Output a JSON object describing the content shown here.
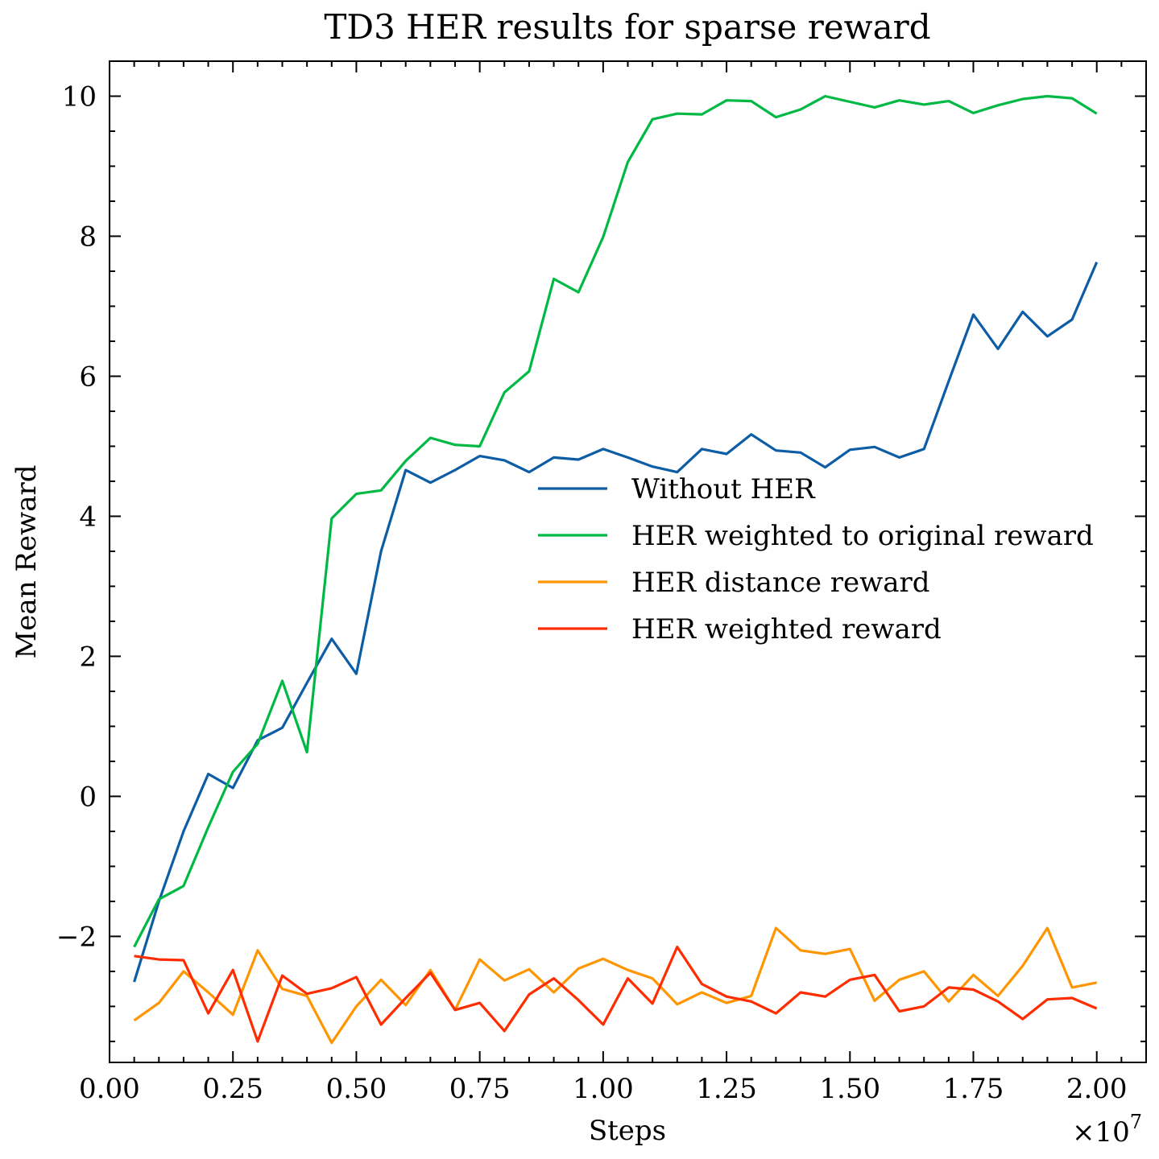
{
  "chart_data": {
    "type": "line",
    "title": "TD3 HER results for sparse reward",
    "xlabel": "Steps",
    "ylabel": "Mean Reward",
    "x_multiplier_label": "×10",
    "x_multiplier_exponent": "7",
    "xlim": [
      0,
      21000000
    ],
    "ylim": [
      -3.8,
      10.5
    ],
    "grid": false,
    "legend_position": "center-right",
    "x_ticks": [
      0,
      2500000,
      5000000,
      7500000,
      10000000,
      12500000,
      15000000,
      17500000,
      20000000
    ],
    "x_tick_labels": [
      "0.00",
      "0.25",
      "0.50",
      "0.75",
      "1.00",
      "1.25",
      "1.50",
      "1.75",
      "2.00"
    ],
    "y_ticks": [
      -2,
      0,
      2,
      4,
      6,
      8,
      10
    ],
    "y_tick_labels": [
      "−2",
      "0",
      "2",
      "4",
      "6",
      "8",
      "10"
    ],
    "x": [
      500000,
      1000000,
      1500000,
      2000000,
      2500000,
      3000000,
      3500000,
      4000000,
      4500000,
      5000000,
      5500000,
      6000000,
      6500000,
      7000000,
      7500000,
      8000000,
      8500000,
      9000000,
      9500000,
      10000000,
      10500000,
      11000000,
      11500000,
      12000000,
      12500000,
      13000000,
      13500000,
      14000000,
      14500000,
      15000000,
      15500000,
      16000000,
      16500000,
      17000000,
      17500000,
      18000000,
      18500000,
      19000000,
      19500000,
      20000000
    ],
    "series": [
      {
        "name": "Without HER",
        "color": "#0C5DA5",
        "values": [
          -2.65,
          -1.5,
          -0.5,
          0.32,
          0.12,
          0.8,
          0.98,
          1.62,
          2.25,
          1.75,
          3.5,
          4.66,
          4.48,
          4.66,
          4.86,
          4.8,
          4.63,
          4.84,
          4.81,
          4.96,
          4.84,
          4.71,
          4.63,
          4.96,
          4.89,
          5.17,
          4.94,
          4.91,
          4.7,
          4.95,
          4.99,
          4.84,
          4.96,
          5.93,
          6.88,
          6.39,
          6.92,
          6.57,
          6.81,
          7.63
        ]
      },
      {
        "name": "HER weighted to original reward",
        "color": "#00B945",
        "values": [
          -2.15,
          -1.47,
          -1.28,
          -0.44,
          0.35,
          0.75,
          1.65,
          0.63,
          3.97,
          4.32,
          4.37,
          4.79,
          5.12,
          5.02,
          5.0,
          5.77,
          6.07,
          7.39,
          7.2,
          7.99,
          9.06,
          9.67,
          9.75,
          9.74,
          9.94,
          9.93,
          9.7,
          9.81,
          10.0,
          9.92,
          9.84,
          9.94,
          9.88,
          9.93,
          9.76,
          9.87,
          9.96,
          10.0,
          9.97,
          9.75
        ]
      },
      {
        "name": "HER distance reward",
        "color": "#FF9500",
        "values": [
          -3.2,
          -2.95,
          -2.5,
          -2.8,
          -3.12,
          -2.2,
          -2.75,
          -2.85,
          -3.52,
          -3.0,
          -2.62,
          -2.98,
          -2.48,
          -3.05,
          -2.33,
          -2.63,
          -2.47,
          -2.8,
          -2.46,
          -2.32,
          -2.48,
          -2.6,
          -2.97,
          -2.8,
          -2.95,
          -2.85,
          -1.88,
          -2.2,
          -2.25,
          -2.18,
          -2.92,
          -2.62,
          -2.5,
          -2.93,
          -2.55,
          -2.85,
          -2.42,
          -1.88,
          -2.73,
          -2.66
        ]
      },
      {
        "name": "HER weighted reward",
        "color": "#FF2C00",
        "values": [
          -2.28,
          -2.33,
          -2.34,
          -3.1,
          -2.48,
          -3.5,
          -2.56,
          -2.82,
          -2.74,
          -2.58,
          -3.26,
          -2.88,
          -2.52,
          -3.05,
          -2.95,
          -3.35,
          -2.83,
          -2.6,
          -2.91,
          -3.26,
          -2.6,
          -2.96,
          -2.15,
          -2.68,
          -2.86,
          -2.93,
          -3.1,
          -2.8,
          -2.86,
          -2.62,
          -2.55,
          -3.07,
          -3.0,
          -2.73,
          -2.76,
          -2.93,
          -3.18,
          -2.9,
          -2.88,
          -3.03
        ]
      }
    ]
  }
}
